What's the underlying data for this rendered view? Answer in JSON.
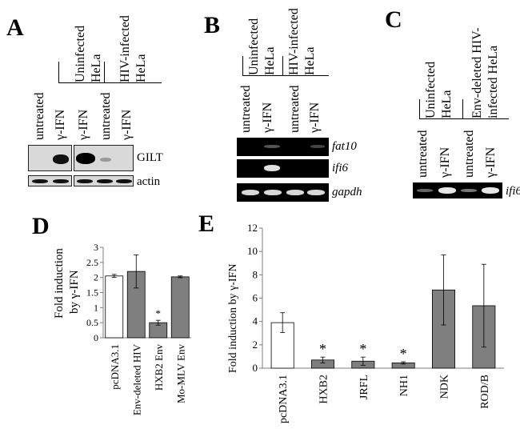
{
  "panels": {
    "A": {
      "letter": "A",
      "groups": [
        "Uninfected HeLa",
        "HIV-infected HeLa"
      ],
      "group_lines": {
        "uninfected": [
          "Uninfected",
          "HeLa"
        ],
        "hiv": [
          "HIV-infected",
          "HeLa"
        ]
      },
      "lanes": [
        "untreated",
        "γ-IFN",
        "γ-IFN",
        "untreated",
        "γ-IFN"
      ],
      "blots": [
        "GILT",
        "actin"
      ]
    },
    "B": {
      "letter": "B",
      "group_lines": {
        "uninfected": [
          "Uninfected",
          "HeLa"
        ],
        "hiv": [
          "HIV-infected",
          "HeLa"
        ]
      },
      "lanes": [
        "untreated",
        "γ-IFN",
        "untreated",
        "γ-IFN"
      ],
      "genes": [
        "fat10",
        "ifi6",
        "gapdh"
      ]
    },
    "C": {
      "letter": "C",
      "group_lines": {
        "uninfected": [
          "Uninfected",
          "HeLa"
        ],
        "env": [
          "Env-deleted HIV-",
          "infected HeLa"
        ]
      },
      "lanes": [
        "untreated",
        "γ-IFN",
        "untreated",
        "γ-IFN"
      ],
      "genes": [
        "ifi6"
      ]
    }
  },
  "colors": {
    "white_bar": "#ffffff",
    "gray_bar": "#7f7f7f",
    "gel": "#000000"
  },
  "chart_data": [
    {
      "panel": "D",
      "type": "bar",
      "ylabel": "Fold induction by γ-IFN",
      "ylabel_lines": [
        "Fold induction",
        "by γ-IFN"
      ],
      "categories": [
        "pcDNA3.1",
        "Env-deleted HIV",
        "HXB2 Env",
        "Mo-MLV Env"
      ],
      "values": [
        2.05,
        2.2,
        0.5,
        2.02
      ],
      "errors": [
        0.05,
        0.55,
        0.08,
        0.03
      ],
      "significance": [
        "",
        "",
        "*",
        ""
      ],
      "ylim": [
        0,
        3
      ],
      "yticks": [
        "0",
        "0.5",
        "1",
        "1.5",
        "2",
        "2.5",
        "3"
      ],
      "bar_colors": [
        "white",
        "gray",
        "gray",
        "gray"
      ],
      "grid": false
    },
    {
      "panel": "E",
      "type": "bar",
      "ylabel": "Fold induction by γ-IFN",
      "categories": [
        "pcDNA3.1",
        "HXB2",
        "JRFL",
        "NH1",
        "NDK",
        "ROD/B"
      ],
      "values": [
        3.9,
        0.7,
        0.6,
        0.45,
        6.7,
        5.35
      ],
      "errors": [
        0.85,
        0.25,
        0.35,
        0.1,
        3.0,
        3.55
      ],
      "significance": [
        "",
        "*",
        "*",
        "*",
        "",
        ""
      ],
      "ylim": [
        0,
        12
      ],
      "yticks": [
        "0",
        "2",
        "4",
        "6",
        "8",
        "10",
        "12"
      ],
      "bar_colors": [
        "white",
        "gray",
        "gray",
        "gray",
        "gray",
        "gray"
      ],
      "grid": false
    }
  ]
}
